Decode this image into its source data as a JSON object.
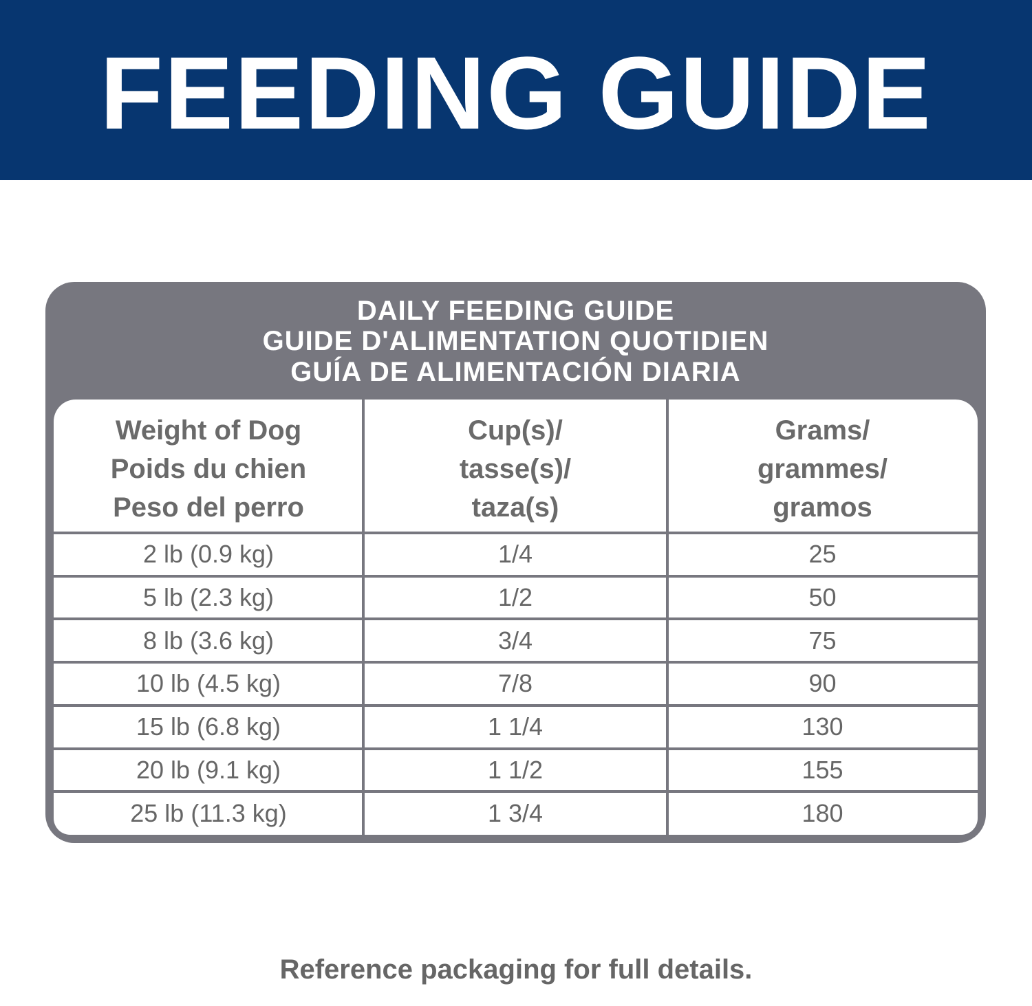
{
  "header": {
    "title": "FEEDING GUIDE"
  },
  "table": {
    "title": [
      "DAILY FEEDING GUIDE",
      "GUIDE D'ALIMENTATION QUOTIDIEN",
      "GUÍA DE ALIMENTACIÓN DIARIA"
    ],
    "columns": [
      [
        "Weight of Dog",
        "Poids du chien",
        "Peso del perro"
      ],
      [
        "Cup(s)/",
        "tasse(s)/",
        "taza(s)"
      ],
      [
        "Grams/",
        "grammes/",
        "gramos"
      ]
    ],
    "rows": [
      [
        "2 lb (0.9 kg)",
        "1/4",
        25
      ],
      [
        "5 lb (2.3 kg)",
        "1/2",
        50
      ],
      [
        "8 lb (3.6 kg)",
        "3/4",
        75
      ],
      [
        "10 lb (4.5 kg)",
        "7/8",
        90
      ],
      [
        "15 lb (6.8 kg)",
        "1 1/4",
        130
      ],
      [
        "20 lb (9.1 kg)",
        "1 1/2",
        155
      ],
      [
        "25 lb (11.3 kg)",
        "1 3/4",
        180
      ]
    ]
  },
  "footer": {
    "note": "Reference packaging for full details."
  }
}
